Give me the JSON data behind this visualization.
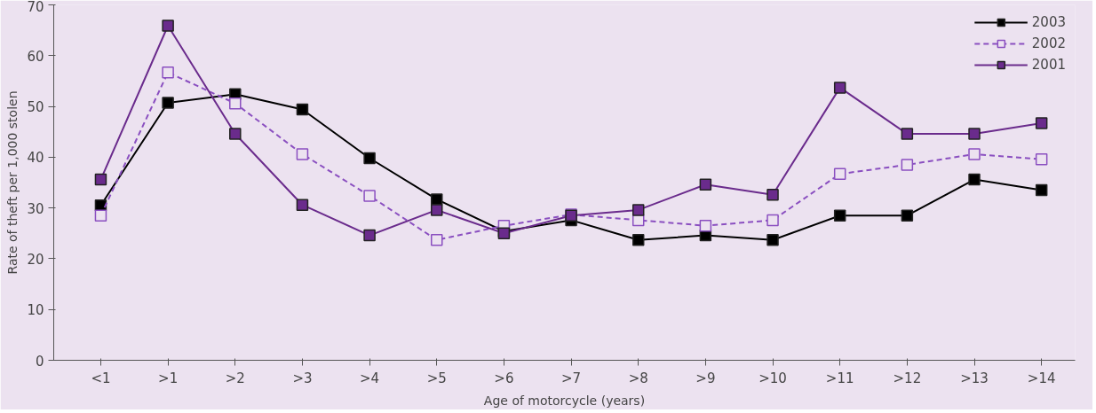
{
  "chart_data": {
    "type": "line",
    "xlabel": "Age of motorcycle (years)",
    "ylabel": "Rate of theft per 1,000 stolen",
    "categories": [
      "<1",
      ">1",
      ">2",
      ">3",
      ">4",
      ">5",
      ">6",
      ">7",
      ">8",
      ">9",
      ">10",
      ">11",
      ">12",
      ">13",
      ">14"
    ],
    "series": [
      {
        "name": "2003",
        "color": "#000000",
        "line_style": "solid",
        "values": [
          30.5,
          50.7,
          52.4,
          49.4,
          39.8,
          31.7,
          25.4,
          27.6,
          23.7,
          24.6,
          23.7,
          28.5,
          28.5,
          35.6,
          33.5
        ]
      },
      {
        "name": "2002",
        "color": "#8a4fc0",
        "line_style": "dashed",
        "values": [
          28.5,
          56.7,
          50.6,
          40.6,
          32.4,
          23.7,
          26.5,
          28.7,
          27.6,
          26.5,
          27.6,
          36.7,
          38.5,
          40.6,
          39.6
        ]
      },
      {
        "name": "2001",
        "color": "#6a2b8c",
        "line_style": "solid",
        "values": [
          35.6,
          65.9,
          44.6,
          30.6,
          24.6,
          29.6,
          25.0,
          28.5,
          29.6,
          34.6,
          32.6,
          53.7,
          44.6,
          44.6,
          46.7
        ]
      }
    ],
    "ylim": [
      0,
      70
    ],
    "yticks": [
      0,
      10,
      20,
      30,
      40,
      50,
      60,
      70
    ],
    "marker": "square",
    "grid": false,
    "legend": "top right"
  }
}
